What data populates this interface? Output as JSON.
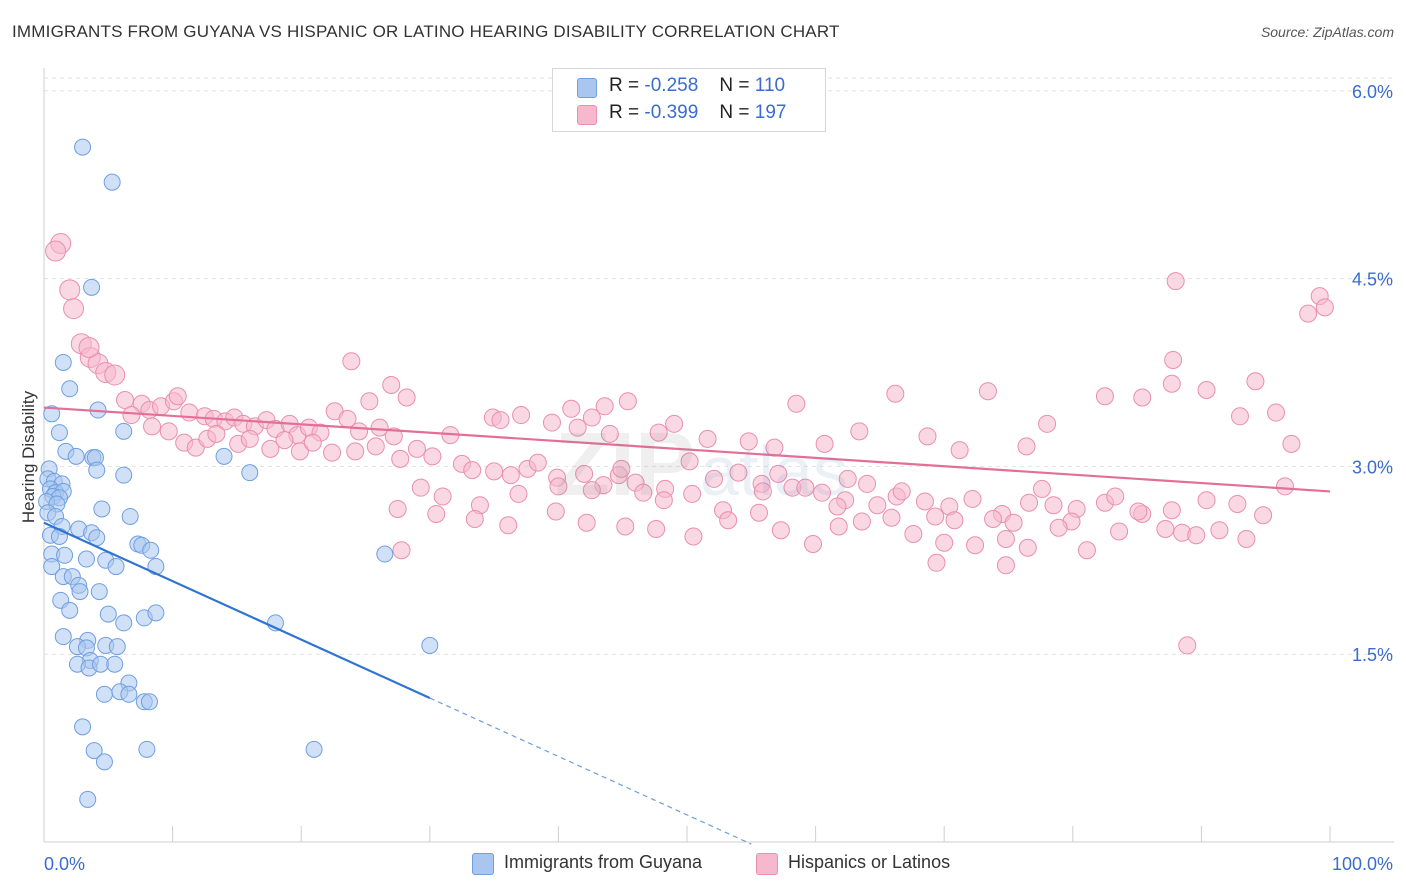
{
  "header": {
    "title": "IMMIGRANTS FROM GUYANA VS HISPANIC OR LATINO HEARING DISABILITY CORRELATION CHART",
    "source": "Source: ZipAtlas.com"
  },
  "legend": {
    "rows": [
      {
        "r_label": "R =",
        "r_value": "-0.258",
        "n_label": "N =",
        "n_value": "110"
      },
      {
        "r_label": "R =",
        "r_value": "-0.399",
        "n_label": "N =",
        "n_value": "197"
      }
    ]
  },
  "bottom_legend": [
    {
      "label": "Immigrants from Guyana"
    },
    {
      "label": "Hispanics or Latinos"
    }
  ],
  "chart_data": {
    "type": "scatter",
    "title": "IMMIGRANTS FROM GUYANA VS HISPANIC OR LATINO HEARING DISABILITY CORRELATION CHART",
    "ylabel": "Hearing Disability",
    "xlim": [
      0,
      100
    ],
    "ylim": [
      0,
      6.15
    ],
    "x_tick_labels": [
      "0.0%",
      "100.0%"
    ],
    "y_ticks": [
      1.5,
      3.0,
      4.5,
      6.0
    ],
    "y_tick_labels": [
      "1.5%",
      "3.0%",
      "4.5%",
      "6.0%"
    ],
    "grid": true,
    "legend_position": "top-center",
    "colors": {
      "blue_fill": "#a9c6f0",
      "blue_stroke": "#6f9fe0",
      "blue_line": "#2f74d0",
      "pink_fill": "#f6b8cc",
      "pink_stroke": "#ea8fac",
      "pink_line": "#e36f98",
      "tick_label": "#3a6ccf",
      "grid": "#e2e2e2"
    },
    "series": [
      {
        "name": "Immigrants from Guyana",
        "trend": {
          "x0": 0,
          "y0": 2.55,
          "x1": 30,
          "y1": 1.15,
          "dash_to_x": 55
        },
        "points": [
          [
            3.0,
            5.55
          ],
          [
            5.3,
            5.27
          ],
          [
            3.7,
            4.43
          ],
          [
            1.5,
            3.83
          ],
          [
            2.0,
            3.62
          ],
          [
            4.2,
            3.45
          ],
          [
            0.6,
            3.42
          ],
          [
            1.2,
            3.27
          ],
          [
            6.2,
            3.28
          ],
          [
            1.7,
            3.12
          ],
          [
            2.5,
            3.08
          ],
          [
            3.8,
            3.07
          ],
          [
            4.0,
            3.07
          ],
          [
            14.0,
            3.08
          ],
          [
            0.4,
            2.98
          ],
          [
            4.1,
            2.97
          ],
          [
            6.2,
            2.93
          ],
          [
            16.0,
            2.95
          ],
          [
            0.3,
            2.9
          ],
          [
            0.8,
            2.88
          ],
          [
            1.4,
            2.86
          ],
          [
            0.5,
            2.82
          ],
          [
            0.9,
            2.79
          ],
          [
            1.5,
            2.8
          ],
          [
            0.7,
            2.76
          ],
          [
            1.2,
            2.75
          ],
          [
            0.2,
            2.72
          ],
          [
            1.0,
            2.7
          ],
          [
            4.5,
            2.66
          ],
          [
            0.3,
            2.63
          ],
          [
            0.9,
            2.6
          ],
          [
            6.7,
            2.6
          ],
          [
            1.4,
            2.52
          ],
          [
            2.7,
            2.5
          ],
          [
            3.7,
            2.47
          ],
          [
            0.5,
            2.45
          ],
          [
            1.2,
            2.44
          ],
          [
            4.1,
            2.43
          ],
          [
            7.3,
            2.38
          ],
          [
            7.6,
            2.37
          ],
          [
            0.6,
            2.3
          ],
          [
            1.6,
            2.29
          ],
          [
            3.3,
            2.26
          ],
          [
            4.8,
            2.25
          ],
          [
            8.3,
            2.33
          ],
          [
            0.6,
            2.2
          ],
          [
            5.6,
            2.2
          ],
          [
            8.7,
            2.2
          ],
          [
            26.5,
            2.3
          ],
          [
            1.5,
            2.12
          ],
          [
            2.2,
            2.12
          ],
          [
            2.7,
            2.05
          ],
          [
            4.3,
            2.0
          ],
          [
            2.8,
            2.0
          ],
          [
            1.3,
            1.93
          ],
          [
            2.0,
            1.85
          ],
          [
            5.0,
            1.82
          ],
          [
            7.8,
            1.79
          ],
          [
            8.7,
            1.83
          ],
          [
            18.0,
            1.75
          ],
          [
            6.2,
            1.75
          ],
          [
            1.5,
            1.64
          ],
          [
            3.4,
            1.61
          ],
          [
            2.6,
            1.56
          ],
          [
            3.3,
            1.55
          ],
          [
            4.8,
            1.57
          ],
          [
            5.7,
            1.56
          ],
          [
            30.0,
            1.57
          ],
          [
            3.6,
            1.45
          ],
          [
            2.6,
            1.42
          ],
          [
            3.5,
            1.39
          ],
          [
            4.4,
            1.42
          ],
          [
            5.5,
            1.42
          ],
          [
            6.6,
            1.27
          ],
          [
            4.7,
            1.18
          ],
          [
            5.9,
            1.2
          ],
          [
            6.6,
            1.18
          ],
          [
            7.8,
            1.12
          ],
          [
            8.2,
            1.12
          ],
          [
            3.0,
            0.92
          ],
          [
            3.9,
            0.73
          ],
          [
            8.0,
            0.74
          ],
          [
            21.0,
            0.74
          ],
          [
            4.7,
            0.64
          ],
          [
            3.4,
            0.34
          ]
        ]
      },
      {
        "name": "Hispanics or Latinos",
        "trend": {
          "x0": 0,
          "y0": 3.47,
          "x1": 100,
          "y1": 2.8
        },
        "points": [
          [
            1.3,
            4.78
          ],
          [
            0.9,
            4.72
          ],
          [
            2.0,
            4.41
          ],
          [
            2.3,
            4.26
          ],
          [
            2.9,
            3.98
          ],
          [
            3.6,
            3.87
          ],
          [
            4.2,
            3.82
          ],
          [
            4.8,
            3.75
          ],
          [
            5.5,
            3.73
          ],
          [
            3.5,
            3.95
          ],
          [
            6.3,
            3.53
          ],
          [
            7.6,
            3.5
          ],
          [
            8.2,
            3.45
          ],
          [
            9.1,
            3.48
          ],
          [
            10.1,
            3.52
          ],
          [
            10.4,
            3.56
          ],
          [
            6.8,
            3.41
          ],
          [
            11.3,
            3.43
          ],
          [
            12.5,
            3.4
          ],
          [
            13.2,
            3.38
          ],
          [
            14.1,
            3.36
          ],
          [
            14.8,
            3.39
          ],
          [
            15.5,
            3.34
          ],
          [
            16.4,
            3.32
          ],
          [
            17.3,
            3.37
          ],
          [
            18.0,
            3.3
          ],
          [
            19.1,
            3.34
          ],
          [
            19.7,
            3.25
          ],
          [
            20.6,
            3.31
          ],
          [
            21.5,
            3.27
          ],
          [
            22.6,
            3.44
          ],
          [
            23.6,
            3.38
          ],
          [
            24.5,
            3.28
          ],
          [
            25.3,
            3.52
          ],
          [
            26.1,
            3.31
          ],
          [
            27.2,
            3.24
          ],
          [
            10.9,
            3.19
          ],
          [
            11.8,
            3.15
          ],
          [
            12.7,
            3.22
          ],
          [
            13.4,
            3.26
          ],
          [
            15.1,
            3.18
          ],
          [
            16.0,
            3.22
          ],
          [
            17.6,
            3.14
          ],
          [
            18.7,
            3.21
          ],
          [
            19.9,
            3.12
          ],
          [
            20.9,
            3.19
          ],
          [
            22.4,
            3.11
          ],
          [
            24.2,
            3.12
          ],
          [
            25.8,
            3.16
          ],
          [
            27.7,
            3.06
          ],
          [
            29.0,
            3.14
          ],
          [
            30.2,
            3.08
          ],
          [
            31.6,
            3.25
          ],
          [
            32.5,
            3.02
          ],
          [
            33.3,
            2.97
          ],
          [
            35.0,
            2.96
          ],
          [
            36.3,
            2.93
          ],
          [
            37.6,
            2.98
          ],
          [
            38.4,
            3.03
          ],
          [
            39.9,
            2.91
          ],
          [
            42.0,
            2.94
          ],
          [
            43.5,
            2.85
          ],
          [
            44.7,
            2.93
          ],
          [
            46.0,
            2.87
          ],
          [
            48.3,
            2.82
          ],
          [
            50.4,
            2.78
          ],
          [
            52.1,
            2.9
          ],
          [
            54.0,
            2.95
          ],
          [
            55.8,
            2.86
          ],
          [
            58.2,
            2.83
          ],
          [
            60.5,
            2.79
          ],
          [
            62.3,
            2.73
          ],
          [
            64.8,
            2.69
          ],
          [
            66.3,
            2.76
          ],
          [
            68.5,
            2.72
          ],
          [
            70.4,
            2.68
          ],
          [
            72.2,
            2.74
          ],
          [
            74.5,
            2.62
          ],
          [
            76.6,
            2.71
          ],
          [
            78.5,
            2.69
          ],
          [
            80.3,
            2.66
          ],
          [
            82.5,
            2.71
          ],
          [
            85.4,
            2.62
          ],
          [
            87.7,
            2.65
          ],
          [
            90.4,
            2.73
          ],
          [
            92.8,
            2.7
          ],
          [
            94.8,
            2.61
          ],
          [
            96.5,
            2.84
          ],
          [
            27.0,
            3.65
          ],
          [
            28.2,
            3.55
          ],
          [
            23.9,
            3.84
          ],
          [
            34.9,
            3.39
          ],
          [
            35.5,
            3.37
          ],
          [
            37.1,
            3.41
          ],
          [
            39.5,
            3.35
          ],
          [
            41.5,
            3.31
          ],
          [
            43.6,
            3.48
          ],
          [
            45.4,
            3.52
          ],
          [
            47.8,
            3.27
          ],
          [
            49.0,
            3.34
          ],
          [
            51.6,
            3.22
          ],
          [
            54.8,
            3.2
          ],
          [
            56.8,
            3.15
          ],
          [
            58.5,
            3.5
          ],
          [
            60.7,
            3.18
          ],
          [
            63.4,
            3.28
          ],
          [
            66.2,
            3.58
          ],
          [
            68.7,
            3.24
          ],
          [
            71.2,
            3.13
          ],
          [
            73.4,
            3.6
          ],
          [
            76.4,
            3.16
          ],
          [
            78.0,
            3.34
          ],
          [
            82.5,
            3.56
          ],
          [
            85.4,
            3.55
          ],
          [
            87.7,
            3.66
          ],
          [
            90.4,
            3.61
          ],
          [
            93.0,
            3.4
          ],
          [
            95.8,
            3.43
          ],
          [
            94.2,
            3.68
          ],
          [
            97.0,
            3.18
          ],
          [
            99.2,
            4.36
          ],
          [
            99.6,
            4.27
          ],
          [
            98.3,
            4.22
          ],
          [
            88.0,
            4.48
          ],
          [
            87.8,
            3.85
          ],
          [
            41.0,
            3.46
          ],
          [
            42.6,
            3.39
          ],
          [
            44.0,
            3.26
          ],
          [
            29.3,
            2.83
          ],
          [
            31.0,
            2.76
          ],
          [
            33.9,
            2.69
          ],
          [
            36.9,
            2.78
          ],
          [
            40.0,
            2.84
          ],
          [
            42.6,
            2.81
          ],
          [
            46.6,
            2.79
          ],
          [
            48.2,
            2.73
          ],
          [
            52.8,
            2.65
          ],
          [
            55.9,
            2.8
          ],
          [
            59.2,
            2.83
          ],
          [
            61.7,
            2.68
          ],
          [
            64.0,
            2.86
          ],
          [
            66.7,
            2.8
          ],
          [
            69.3,
            2.6
          ],
          [
            70.8,
            2.57
          ],
          [
            73.8,
            2.58
          ],
          [
            75.4,
            2.55
          ],
          [
            77.6,
            2.82
          ],
          [
            79.9,
            2.56
          ],
          [
            83.3,
            2.76
          ],
          [
            85.1,
            2.64
          ],
          [
            88.5,
            2.47
          ],
          [
            91.4,
            2.49
          ],
          [
            93.5,
            2.42
          ],
          [
            27.5,
            2.66
          ],
          [
            30.5,
            2.62
          ],
          [
            33.5,
            2.58
          ],
          [
            36.1,
            2.53
          ],
          [
            39.8,
            2.64
          ],
          [
            42.2,
            2.55
          ],
          [
            45.2,
            2.52
          ],
          [
            47.6,
            2.5
          ],
          [
            50.5,
            2.44
          ],
          [
            53.2,
            2.57
          ],
          [
            55.6,
            2.63
          ],
          [
            57.3,
            2.49
          ],
          [
            59.8,
            2.38
          ],
          [
            61.8,
            2.52
          ],
          [
            63.6,
            2.56
          ],
          [
            65.9,
            2.59
          ],
          [
            67.6,
            2.46
          ],
          [
            70.0,
            2.39
          ],
          [
            72.4,
            2.37
          ],
          [
            74.8,
            2.42
          ],
          [
            76.5,
            2.35
          ],
          [
            78.9,
            2.51
          ],
          [
            81.1,
            2.33
          ],
          [
            83.6,
            2.48
          ],
          [
            87.2,
            2.5
          ],
          [
            89.6,
            2.45
          ],
          [
            27.8,
            2.33
          ],
          [
            69.4,
            2.23
          ],
          [
            74.8,
            2.21
          ],
          [
            88.9,
            1.57
          ],
          [
            8.4,
            3.32
          ],
          [
            9.7,
            3.28
          ],
          [
            44.9,
            2.98
          ],
          [
            50.2,
            3.04
          ],
          [
            57.1,
            2.94
          ],
          [
            62.5,
            2.9
          ]
        ]
      }
    ]
  }
}
